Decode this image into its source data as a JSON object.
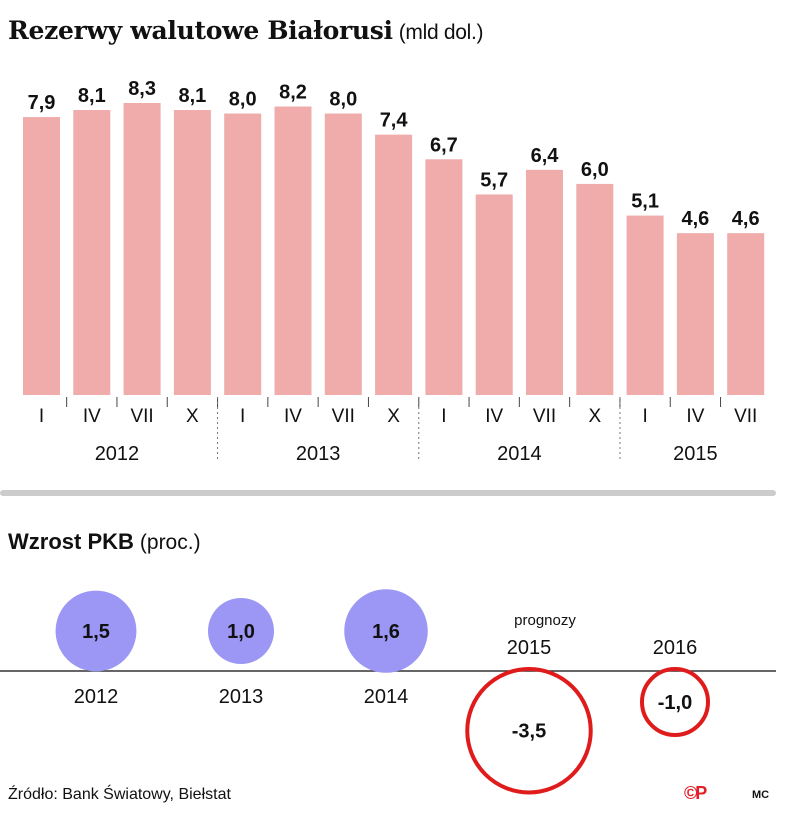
{
  "reserves": {
    "title": "Rezerwy walutowe Białorusi",
    "unit": "(mld dol.)"
  },
  "gdp": {
    "title": "Wzrost PKB",
    "unit": "(proc.)",
    "forecast_label": "prognozy"
  },
  "footer": {
    "source": "Źródło: Bank Światowy, Biełstat",
    "logo": "©P",
    "author": "MC"
  },
  "colors": {
    "bar": "#f0abab",
    "positive_circle": "#9c97f5",
    "negative_circle": "#e01b1b",
    "divider": "#cccccc"
  },
  "chart_data": [
    {
      "type": "bar",
      "title": "Rezerwy walutowe Białorusi",
      "unit": "mld dol.",
      "categories": [
        "I",
        "IV",
        "VII",
        "X",
        "I",
        "IV",
        "VII",
        "X",
        "I",
        "IV",
        "VII",
        "X",
        "I",
        "IV",
        "VII"
      ],
      "groups": [
        {
          "label": "2012",
          "count": 4
        },
        {
          "label": "2013",
          "count": 4
        },
        {
          "label": "2014",
          "count": 4
        },
        {
          "label": "2015",
          "count": 3
        }
      ],
      "values": [
        7.9,
        8.1,
        8.3,
        8.1,
        8.0,
        8.2,
        8.0,
        7.4,
        6.7,
        5.7,
        6.4,
        6.0,
        5.1,
        4.6,
        4.6
      ],
      "labels": [
        "7,9",
        "8,1",
        "8,3",
        "8,1",
        "8,0",
        "8,2",
        "8,0",
        "7,4",
        "6,7",
        "5,7",
        "6,4",
        "6,0",
        "5,1",
        "4,6",
        "4,6"
      ],
      "ylim": [
        0,
        8.3
      ],
      "grid": false
    },
    {
      "type": "bubble",
      "title": "Wzrost PKB",
      "unit": "proc.",
      "categories": [
        "2012",
        "2013",
        "2014",
        "2015",
        "2016"
      ],
      "values": [
        1.5,
        1.0,
        1.6,
        -3.5,
        -1.0
      ],
      "labels": [
        "1,5",
        "1,0",
        "1,6",
        "-3,5",
        "-1,0"
      ],
      "forecast": [
        false,
        false,
        false,
        true,
        true
      ]
    }
  ]
}
